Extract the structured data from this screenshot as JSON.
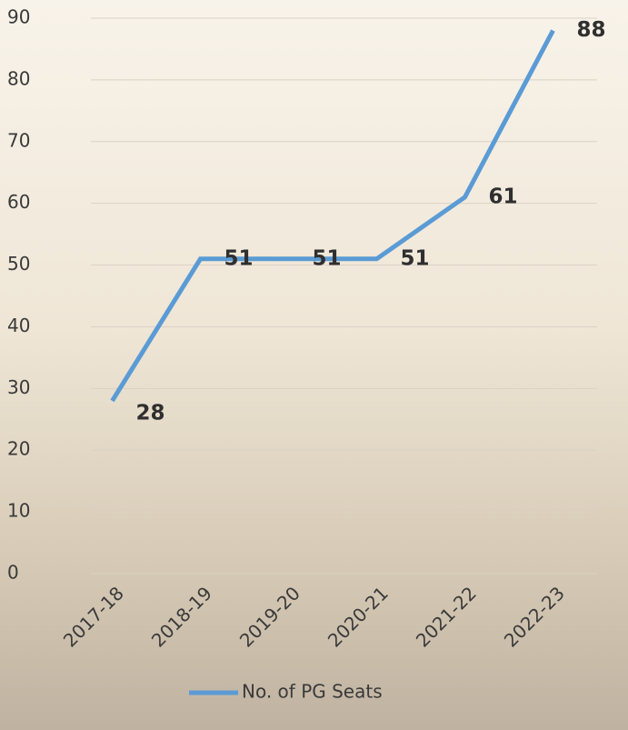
{
  "chart_data": {
    "type": "line",
    "categories": [
      "2017-18",
      "2018-19",
      "2019-20",
      "2020-21",
      "2021-22",
      "2022-23"
    ],
    "series": [
      {
        "name": "No. of PG Seats",
        "color": "#5b9bd5",
        "values": [
          28,
          51,
          51,
          51,
          61,
          88
        ]
      }
    ],
    "ylim": [
      0,
      90
    ],
    "yticks": [
      0,
      10,
      20,
      30,
      40,
      50,
      60,
      70,
      80,
      90
    ],
    "grid": true,
    "legend": "bottom"
  }
}
